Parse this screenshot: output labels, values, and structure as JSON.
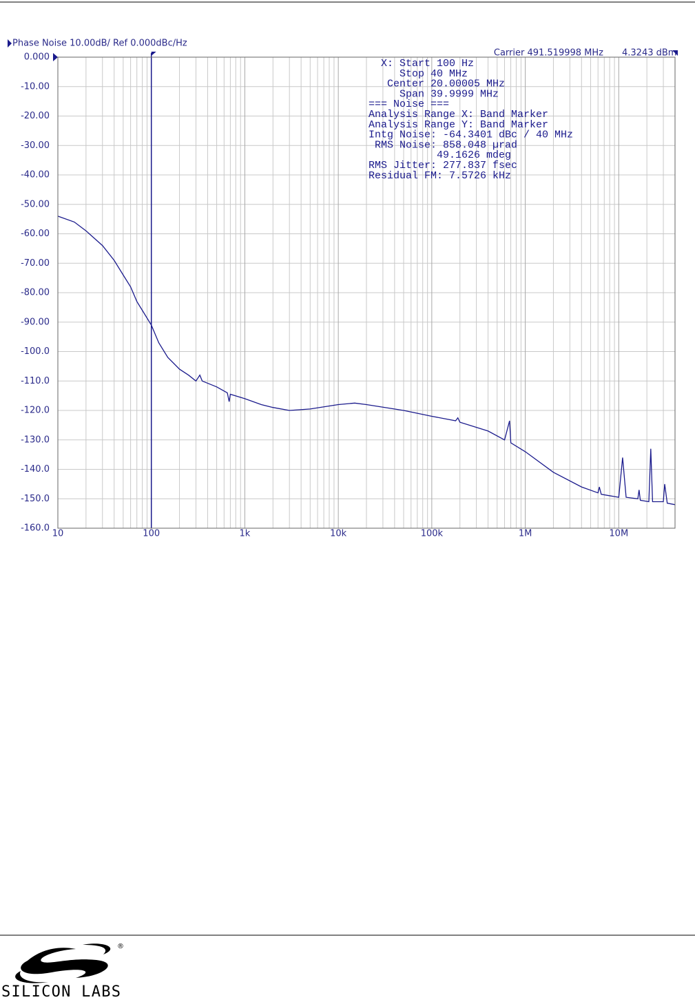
{
  "chart_data": {
    "type": "line",
    "title": "Phase Noise 10.00dB/ Ref 0.000dBc/Hz",
    "carrier": "Carrier 491.519998 MHz",
    "carrier_level": "4.3243 dBm",
    "annotation": [
      "  X: Start 100 Hz",
      "     Stop 40 MHz",
      "   Center 20.00005 MHz",
      "     Span 39.9999 MHz",
      "=== Noise ===",
      "Analysis Range X: Band Marker",
      "Analysis Range Y: Band Marker",
      "Intg Noise: -64.3401 dBc / 40 MHz",
      " RMS Noise: 858.048 µrad",
      "           49.1626 mdeg",
      "RMS Jitter: 277.837 fsec",
      "Residual FM: 7.5726 kHz"
    ],
    "color": "#1a1a8c",
    "x_log": true,
    "grid": true,
    "marker_x": 100,
    "xlim": [
      10,
      40000000
    ],
    "xticks": [
      10,
      100,
      {
        "value": 1000,
        "label": "1k"
      },
      {
        "value": 10000,
        "label": "10k"
      },
      {
        "value": 100000,
        "label": "100k"
      },
      {
        "value": 1000000,
        "label": "1M"
      },
      {
        "value": 10000000,
        "label": "10M"
      }
    ],
    "ylim": [
      -160,
      0
    ],
    "yticks": [
      {
        "value": 0,
        "label": "0.000"
      },
      {
        "value": -10,
        "label": "-10.00"
      },
      {
        "value": -20,
        "label": "-20.00"
      },
      {
        "value": -30,
        "label": "-30.00"
      },
      {
        "value": -40,
        "label": "-40.00"
      },
      {
        "value": -50,
        "label": "-50.00"
      },
      {
        "value": -60,
        "label": "-60.00"
      },
      {
        "value": -70,
        "label": "-70.00"
      },
      {
        "value": -80,
        "label": "-80.00"
      },
      {
        "value": -90,
        "label": "-90.00"
      },
      {
        "value": -100,
        "label": "-100.0"
      },
      {
        "value": -110,
        "label": "-110.0"
      },
      {
        "value": -120,
        "label": "-120.0"
      },
      {
        "value": -130,
        "label": "-130.0"
      },
      {
        "value": -140,
        "label": "-140.0"
      },
      {
        "value": -150,
        "label": "-150.0"
      },
      {
        "value": -160,
        "label": "-160.0"
      }
    ],
    "x": [
      10,
      15,
      20,
      30,
      40,
      50,
      60,
      70,
      80,
      100,
      120,
      150,
      200,
      250,
      300,
      330,
      350,
      500,
      650,
      680,
      700,
      1000,
      1500,
      2000,
      3000,
      5000,
      10000,
      15000,
      20000,
      50000,
      100000,
      180000,
      190000,
      200000,
      400000,
      600000,
      680000,
      700000,
      1000000,
      2000000,
      4000000,
      6000000,
      6200000,
      6500000,
      10000000,
      11000000,
      12000000,
      16000000,
      16500000,
      17000000,
      21000000,
      22000000,
      23000000,
      30000000,
      31000000,
      33000000,
      40000000
    ],
    "values": [
      -54,
      -56,
      -59,
      -64,
      -69,
      -74,
      -78,
      -83,
      -86,
      -91,
      -97,
      -102,
      -106,
      -108,
      -110,
      -108,
      -110,
      -112,
      -114,
      -117,
      -114.5,
      -116,
      -118,
      -119,
      -120,
      -119.5,
      -118,
      -117.5,
      -118,
      -120,
      -122,
      -123.5,
      -122.5,
      -124,
      -127,
      -130,
      -123.5,
      -131,
      -134,
      -141,
      -146,
      -148,
      -146,
      -148.5,
      -149.5,
      -136,
      -149.5,
      -150,
      -147,
      -150.5,
      -151,
      -133,
      -151,
      -151,
      -145,
      -151.5,
      -152
    ]
  },
  "footer": {
    "logo_text": "SILICON LABS",
    "registered": "®"
  }
}
